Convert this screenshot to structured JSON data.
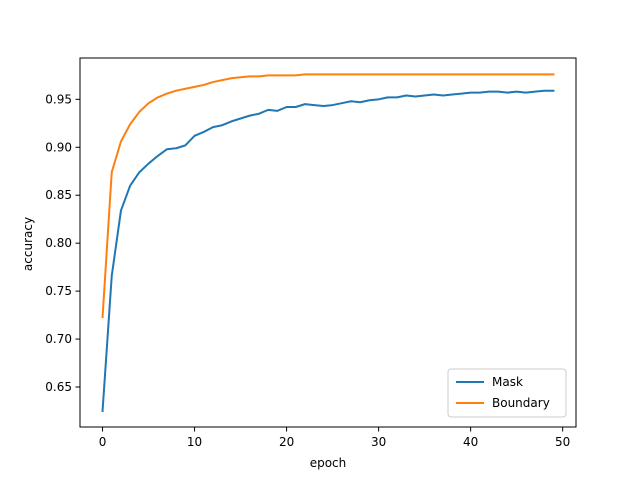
{
  "chart_data": {
    "type": "line",
    "title": "",
    "xlabel": "epoch",
    "ylabel": "accuracy",
    "xlim": [
      -2.45,
      51.45
    ],
    "ylim": [
      0.6083,
      0.9931
    ],
    "xticks": [
      0,
      10,
      20,
      30,
      40,
      50
    ],
    "xtick_labels": [
      "0",
      "10",
      "20",
      "30",
      "40",
      "50"
    ],
    "yticks": [
      0.65,
      0.7,
      0.75,
      0.8,
      0.85,
      0.9,
      0.95
    ],
    "ytick_labels": [
      "0.65",
      "0.70",
      "0.75",
      "0.80",
      "0.85",
      "0.90",
      "0.95"
    ],
    "grid": false,
    "legend_position": "lower right",
    "x": [
      0,
      1,
      2,
      3,
      4,
      5,
      6,
      7,
      8,
      9,
      10,
      11,
      12,
      13,
      14,
      15,
      16,
      17,
      18,
      19,
      20,
      21,
      22,
      23,
      24,
      25,
      26,
      27,
      28,
      29,
      30,
      31,
      32,
      33,
      34,
      35,
      36,
      37,
      38,
      39,
      40,
      41,
      42,
      43,
      44,
      45,
      46,
      47,
      48,
      49
    ],
    "series": [
      {
        "name": "Mask",
        "color": "#1f77b4",
        "values": [
          0.625,
          0.766,
          0.834,
          0.86,
          0.874,
          0.883,
          0.891,
          0.898,
          0.899,
          0.902,
          0.912,
          0.916,
          0.921,
          0.923,
          0.927,
          0.93,
          0.933,
          0.935,
          0.939,
          0.938,
          0.942,
          0.942,
          0.945,
          0.944,
          0.943,
          0.944,
          0.946,
          0.948,
          0.947,
          0.949,
          0.95,
          0.952,
          0.952,
          0.954,
          0.953,
          0.954,
          0.955,
          0.954,
          0.955,
          0.956,
          0.957,
          0.957,
          0.958,
          0.958,
          0.957,
          0.958,
          0.957,
          0.958,
          0.959,
          0.959
        ]
      },
      {
        "name": "Boundary",
        "color": "#ff7f0e",
        "values": [
          0.723,
          0.874,
          0.906,
          0.924,
          0.937,
          0.946,
          0.952,
          0.956,
          0.959,
          0.961,
          0.963,
          0.965,
          0.968,
          0.97,
          0.972,
          0.973,
          0.974,
          0.974,
          0.975,
          0.975,
          0.975,
          0.975,
          0.976,
          0.976,
          0.976,
          0.976,
          0.976,
          0.976,
          0.976,
          0.976,
          0.976,
          0.976,
          0.976,
          0.976,
          0.976,
          0.976,
          0.976,
          0.976,
          0.976,
          0.976,
          0.976,
          0.976,
          0.976,
          0.976,
          0.976,
          0.976,
          0.976,
          0.976,
          0.976,
          0.976
        ]
      }
    ]
  }
}
